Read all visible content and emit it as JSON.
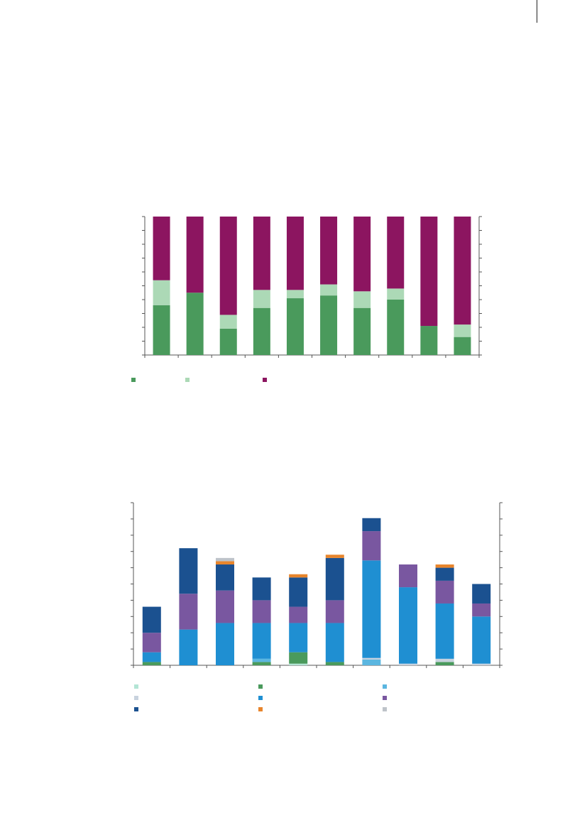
{
  "chart_data": [
    {
      "type": "bar",
      "stacked": true,
      "title": "",
      "xlabel": "",
      "ylabel": "",
      "ylim": [
        0,
        100
      ],
      "y_ticks": 10,
      "secondary_axis": true,
      "categories": [
        "",
        "",
        "",
        "",
        "",
        "",
        "",
        "",
        "",
        ""
      ],
      "legend": "bottom-left",
      "series": [
        {
          "color": "#4a9a5c",
          "values": [
            36,
            45,
            19,
            34,
            41,
            43,
            34,
            40,
            21,
            13
          ]
        },
        {
          "color": "#acd9b6",
          "values": [
            18,
            0,
            10,
            13,
            6,
            8,
            12,
            8,
            0,
            9
          ]
        },
        {
          "color": "#8c1560",
          "values": [
            46,
            55,
            71,
            53,
            53,
            49,
            54,
            52,
            79,
            78
          ]
        }
      ]
    },
    {
      "type": "bar",
      "stacked": true,
      "title": "",
      "xlabel": "",
      "ylabel": "",
      "ylim": [
        0,
        10
      ],
      "y_ticks": 10,
      "secondary_axis": true,
      "categories": [
        "",
        "",
        "",
        "",
        "",
        "",
        "",
        "",
        "",
        ""
      ],
      "legend": "bottom",
      "series": [
        {
          "color": "#b3e5d5",
          "values": [
            0,
            0,
            0,
            0,
            0.1,
            0,
            0,
            0,
            0,
            0
          ]
        },
        {
          "color": "#4a9a5c",
          "values": [
            0.2,
            0,
            0,
            0.2,
            0.7,
            0.2,
            0,
            0,
            0.2,
            0
          ]
        },
        {
          "color": "#5bb6e0",
          "values": [
            0,
            0,
            0,
            0.2,
            0,
            0,
            0.35,
            0,
            0,
            0
          ]
        },
        {
          "color": "#c8d2de",
          "values": [
            0,
            0,
            0,
            0,
            0,
            0,
            0.1,
            0.1,
            0.2,
            0.1
          ]
        },
        {
          "color": "#1f8fd2",
          "values": [
            0.6,
            2.2,
            2.6,
            2.2,
            1.8,
            2.4,
            6.0,
            4.7,
            3.4,
            2.9
          ]
        },
        {
          "color": "#7957a0",
          "values": [
            1.2,
            2.2,
            2.0,
            1.4,
            1.0,
            1.4,
            1.8,
            1.4,
            1.4,
            0.8
          ]
        },
        {
          "color": "#1b5190",
          "values": [
            1.6,
            2.8,
            1.6,
            1.4,
            1.8,
            2.6,
            0.8,
            0,
            0.8,
            1.2
          ]
        },
        {
          "color": "#e8852c",
          "values": [
            0,
            0,
            0.2,
            0,
            0.2,
            0.2,
            0,
            0,
            0.2,
            0
          ]
        },
        {
          "color": "#bec3c9",
          "values": [
            0,
            0,
            0.2,
            0,
            0,
            0,
            0,
            0,
            0,
            0
          ]
        }
      ]
    }
  ]
}
